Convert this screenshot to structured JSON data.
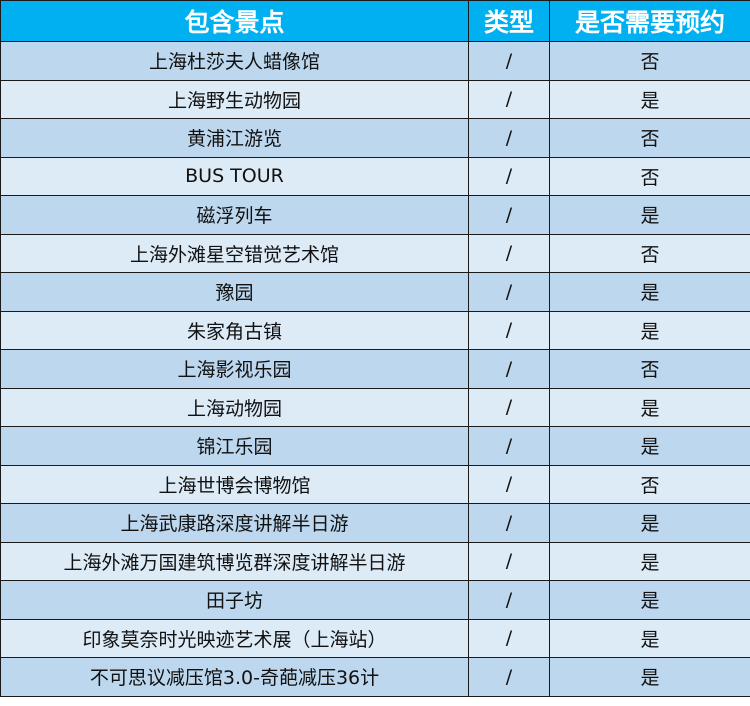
{
  "colors": {
    "header": "#00b0f0",
    "row_odd": "#bdd7ee",
    "row_even": "#ddebf7"
  },
  "headers": [
    "包含景点",
    "类型",
    "是否需要预约"
  ],
  "rows": [
    [
      "上海杜莎夫人蜡像馆",
      "/",
      "否"
    ],
    [
      "上海野生动物园",
      "/",
      "是"
    ],
    [
      "黄浦江游览",
      "/",
      "否"
    ],
    [
      "BUS TOUR",
      "/",
      "否"
    ],
    [
      "磁浮列车",
      "/",
      "是"
    ],
    [
      "上海外滩星空错觉艺术馆",
      "/",
      "否"
    ],
    [
      "豫园",
      "/",
      "是"
    ],
    [
      "朱家角古镇",
      "/",
      "是"
    ],
    [
      "上海影视乐园",
      "/",
      "否"
    ],
    [
      "上海动物园",
      "/",
      "是"
    ],
    [
      "锦江乐园",
      "/",
      "是"
    ],
    [
      "上海世博会博物馆",
      "/",
      "否"
    ],
    [
      "上海武康路深度讲解半日游",
      "/",
      "是"
    ],
    [
      "上海外滩万国建筑博览群深度讲解半日游",
      "/",
      "是"
    ],
    [
      "田子坊",
      "/",
      "是"
    ],
    [
      "印象莫奈时光映迹艺术展（上海站）",
      "/",
      "是"
    ],
    [
      "不可思议减压馆3.0-奇葩减压36计",
      "/",
      "是"
    ]
  ]
}
